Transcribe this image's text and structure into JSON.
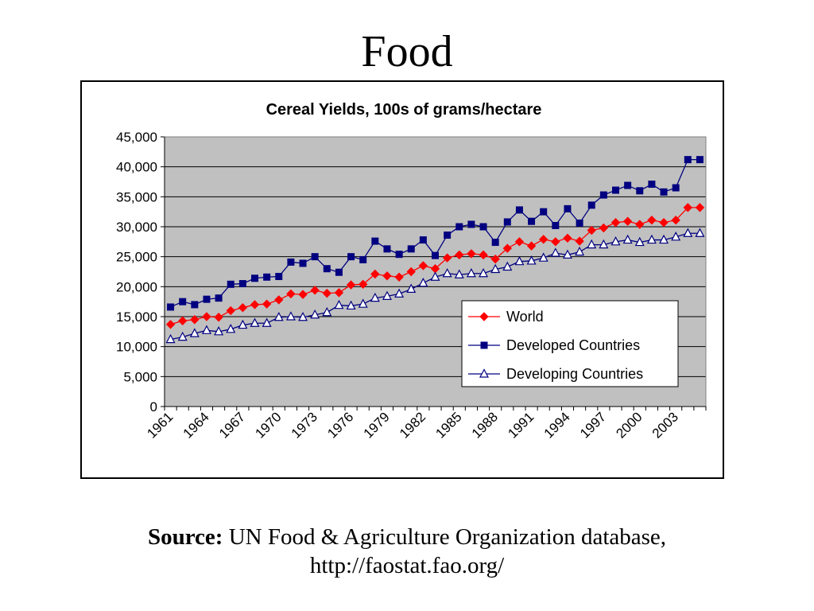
{
  "slide": {
    "title": "Food",
    "source_label": "Source:",
    "source_text": "UN Food & Agriculture Organization database,",
    "source_url": "http://faostat.fao.org/"
  },
  "chart_data": {
    "type": "line",
    "title": "Cereal Yields, 100s of grams/hectare",
    "xlabel": "",
    "ylabel": "",
    "ylim": [
      0,
      45000
    ],
    "yticks": [
      "0",
      "5,000",
      "10,000",
      "15,000",
      "20,000",
      "25,000",
      "30,000",
      "35,000",
      "40,000",
      "45,000"
    ],
    "xtick_labels": [
      "1961",
      "1964",
      "1967",
      "1970",
      "1973",
      "1976",
      "1979",
      "1982",
      "1985",
      "1988",
      "1991",
      "1994",
      "1997",
      "2000",
      "2003"
    ],
    "plot_background": "#c0c0c0",
    "grid": true,
    "legend_position": "lower-right",
    "x": [
      1961,
      1962,
      1963,
      1964,
      1965,
      1966,
      1967,
      1968,
      1969,
      1970,
      1971,
      1972,
      1973,
      1974,
      1975,
      1976,
      1977,
      1978,
      1979,
      1980,
      1981,
      1982,
      1983,
      1984,
      1985,
      1986,
      1987,
      1988,
      1989,
      1990,
      1991,
      1992,
      1993,
      1994,
      1995,
      1996,
      1997,
      1998,
      1999,
      2000,
      2001,
      2002,
      2003,
      2004,
      2005
    ],
    "series": [
      {
        "name": "World",
        "color": "#ff0000",
        "marker": "diamond",
        "values": [
          13700,
          14300,
          14500,
          15000,
          14900,
          16000,
          16500,
          17000,
          17100,
          17800,
          18800,
          18700,
          19400,
          18900,
          19000,
          20300,
          20400,
          22100,
          21800,
          21600,
          22500,
          23500,
          23000,
          24800,
          25300,
          25500,
          25300,
          24600,
          26400,
          27500,
          26800,
          27900,
          27500,
          28100,
          27600,
          29400,
          29800,
          30700,
          30900,
          30400,
          31100,
          30700,
          31100,
          33200,
          33200
        ]
      },
      {
        "name": "Developed Countries",
        "color": "#000080",
        "marker": "square",
        "values": [
          16600,
          17500,
          17000,
          17900,
          18100,
          20400,
          20500,
          21400,
          21600,
          21700,
          24100,
          23900,
          25000,
          23000,
          22400,
          25000,
          24500,
          27600,
          26300,
          25400,
          26300,
          27800,
          25200,
          28600,
          30000,
          30400,
          30000,
          27400,
          30800,
          32800,
          30900,
          32500,
          30200,
          33000,
          30600,
          33600,
          35300,
          36100,
          36900,
          36000,
          37100,
          35800,
          36500,
          41200,
          41200
        ]
      },
      {
        "name": "Developing Countries",
        "color": "#000080",
        "marker": "triangle",
        "values": [
          11200,
          11600,
          12200,
          12700,
          12500,
          12900,
          13600,
          13900,
          13900,
          14900,
          15000,
          14900,
          15300,
          15700,
          16900,
          16800,
          17100,
          18100,
          18400,
          18800,
          19600,
          20600,
          21600,
          22200,
          22000,
          22200,
          22200,
          22900,
          23300,
          24200,
          24300,
          24800,
          25600,
          25300,
          25800,
          27000,
          27000,
          27500,
          27800,
          27400,
          27800,
          27800,
          28300,
          28900,
          28900
        ]
      }
    ]
  }
}
